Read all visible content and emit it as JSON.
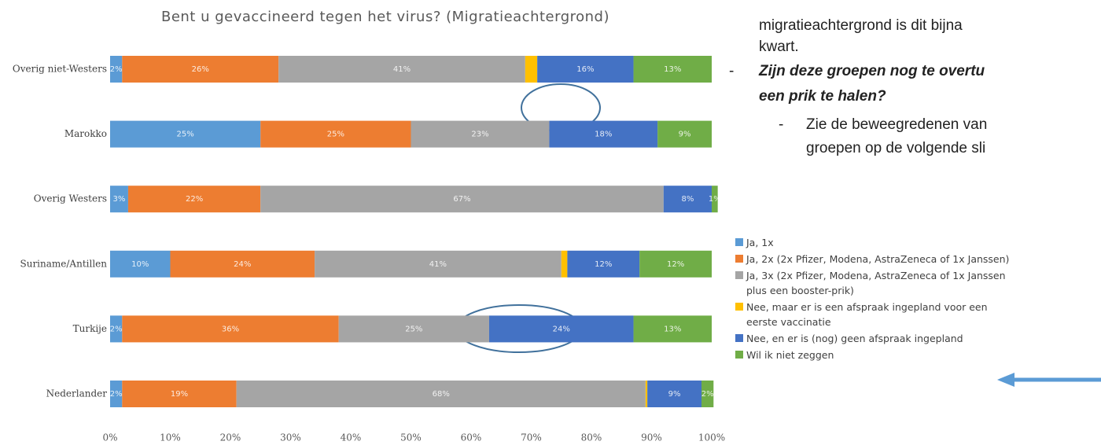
{
  "chart_data": {
    "type": "stacked-barh",
    "title": "Bent u gevaccineerd tegen het virus? (Migratieachtergrond)",
    "categories": [
      "Overig niet-Westers",
      "Marokko",
      "Overig Westers",
      "Suriname/Antillen",
      "Turkije",
      "Nederlander"
    ],
    "series": [
      {
        "name": "Ja, 1x",
        "color": "#5b9bd5",
        "values": [
          2,
          25,
          3,
          10,
          2,
          2
        ],
        "value_labels": [
          "2%",
          "25%",
          "3%",
          "10%",
          "2%",
          "2%"
        ]
      },
      {
        "name": "Ja, 2x (2x Pfizer, Modena, AstraZeneca of 1x Janssen)",
        "color": "#ed7d31",
        "values": [
          26,
          25,
          22,
          24,
          36,
          19
        ],
        "value_labels": [
          "26%",
          "25%",
          "22%",
          "24%",
          "36%",
          "19%"
        ]
      },
      {
        "name": "Ja, 3x (2x Pfizer, Modena, AstraZeneca of 1x Janssen plus een booster-prik)",
        "color": "#a5a5a5",
        "values": [
          41,
          23,
          67,
          41,
          25,
          68
        ],
        "value_labels": [
          "41%",
          "23%",
          "67%",
          "41%",
          "25%",
          "68%"
        ]
      },
      {
        "name": "Nee, maar er is een afspraak ingepland voor een eerste vaccinatie",
        "color": "#ffc000",
        "values": [
          2,
          0,
          0,
          1,
          0,
          0.3
        ],
        "value_labels": [
          null,
          null,
          null,
          null,
          null,
          null
        ]
      },
      {
        "name": "Nee, en er is (nog) geen afspraak ingepland",
        "color": "#4472c4",
        "values": [
          16,
          18,
          8,
          12,
          24,
          9
        ],
        "value_labels": [
          "16%",
          "18%",
          "8%",
          "12%",
          "24%",
          "9%"
        ]
      },
      {
        "name": "Wil ik niet zeggen",
        "color": "#70ad47",
        "values": [
          13,
          9,
          1,
          12,
          13,
          2
        ],
        "value_labels": [
          "13%",
          "9%",
          "1%",
          "12%",
          "13%",
          "2%"
        ]
      }
    ],
    "xlim": [
      0,
      100
    ],
    "xticks": [
      {
        "value": 0,
        "label": "0%"
      },
      {
        "value": 10,
        "label": "10%"
      },
      {
        "value": 20,
        "label": "20%"
      },
      {
        "value": 30,
        "label": "30%"
      },
      {
        "value": 40,
        "label": "40%"
      },
      {
        "value": 50,
        "label": "50%"
      },
      {
        "value": 60,
        "label": "60%"
      },
      {
        "value": 70,
        "label": "70%"
      },
      {
        "value": 80,
        "label": "80%"
      },
      {
        "value": 90,
        "label": "90%"
      },
      {
        "value": 100,
        "label": "100%"
      }
    ],
    "grid": false,
    "legend": "right"
  },
  "notes": {
    "intro": [
      "migratieachtergrond is dit bijna",
      "kwart."
    ],
    "question": {
      "marker": "-",
      "lines": [
        "Zijn deze groepen nog te overtu",
        "een prik te halen?"
      ]
    },
    "sub": {
      "marker": "-",
      "lines": [
        "Zie de beweegredenen van",
        "groepen op de volgende sli"
      ]
    }
  }
}
